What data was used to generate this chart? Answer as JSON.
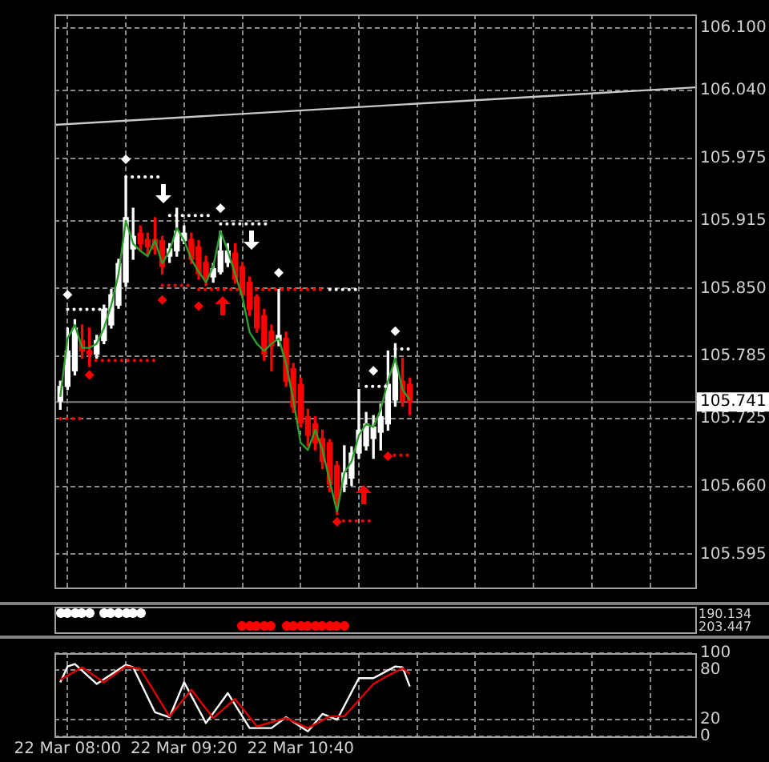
{
  "chart_data": [
    {
      "type": "candlestick",
      "tick_labels": "y",
      "grid": true,
      "xlim": [
        "--03-22T07:51",
        "--03-22T15:11"
      ],
      "xticks": [
        {
          "value": "--03-22T08:00",
          "label": null
        },
        {
          "value": "--03-22T08:40",
          "label": null
        },
        {
          "value": "--03-22T09:20",
          "label": null
        },
        {
          "value": "--03-22T10:00",
          "label": null
        },
        {
          "value": "--03-22T10:40",
          "label": null
        },
        {
          "value": "--03-22T11:20",
          "label": null
        },
        {
          "value": "--03-22T12:00",
          "label": null
        },
        {
          "value": "--03-22T12:40",
          "label": null
        },
        {
          "value": "--03-22T13:20",
          "label": null
        },
        {
          "value": "--03-22T14:00",
          "label": null
        },
        {
          "value": "--03-22T14:40",
          "label": null
        }
      ],
      "ylim": [
        105.563,
        106.113
      ],
      "yticks": [
        {
          "value": 105.595,
          "label": "105.595"
        },
        {
          "value": 105.66,
          "label": "105.660"
        },
        {
          "value": 105.725,
          "label": "105.725"
        },
        {
          "value": 105.785,
          "label": "105.785"
        },
        {
          "value": 105.85,
          "label": "105.850"
        },
        {
          "value": 105.915,
          "label": "105.915"
        },
        {
          "value": 105.975,
          "label": "105.975"
        },
        {
          "value": 106.04,
          "label": "106.040"
        },
        {
          "value": 106.1,
          "label": "106.100"
        }
      ],
      "x": [
        "--03-22T07:55",
        "--03-22T08:00",
        "--03-22T08:05",
        "--03-22T08:10",
        "--03-22T08:15",
        "--03-22T08:20",
        "--03-22T08:25",
        "--03-22T08:30",
        "--03-22T08:35",
        "--03-22T08:40",
        "--03-22T08:45",
        "--03-22T08:50",
        "--03-22T08:55",
        "--03-22T09:00",
        "--03-22T09:05",
        "--03-22T09:10",
        "--03-22T09:15",
        "--03-22T09:20",
        "--03-22T09:25",
        "--03-22T09:30",
        "--03-22T09:35",
        "--03-22T09:40",
        "--03-22T09:45",
        "--03-22T09:50",
        "--03-22T09:55",
        "--03-22T10:00",
        "--03-22T10:05",
        "--03-22T10:10",
        "--03-22T10:15",
        "--03-22T10:20",
        "--03-22T10:25",
        "--03-22T10:30",
        "--03-22T10:35",
        "--03-22T10:40",
        "--03-22T10:45",
        "--03-22T10:50",
        "--03-22T10:55",
        "--03-22T11:00",
        "--03-22T11:05",
        "--03-22T11:10",
        "--03-22T11:15",
        "--03-22T11:20",
        "--03-22T11:25",
        "--03-22T11:30",
        "--03-22T11:35",
        "--03-22T11:40",
        "--03-22T11:45",
        "--03-22T11:50",
        "--03-22T11:55"
      ],
      "ohlc": [
        [
          105.742,
          105.761,
          105.734,
          105.756
        ],
        [
          105.756,
          105.812,
          105.753,
          105.79
        ],
        [
          105.771,
          105.82,
          105.767,
          105.812
        ],
        [
          105.8,
          105.815,
          105.783,
          105.79
        ],
        [
          105.79,
          105.812,
          105.775,
          105.787
        ],
        [
          105.787,
          105.805,
          105.783,
          105.8
        ],
        [
          105.8,
          105.834,
          105.797,
          105.83
        ],
        [
          105.815,
          105.849,
          105.812,
          105.844
        ],
        [
          105.834,
          105.878,
          105.831,
          105.874
        ],
        [
          105.856,
          105.956,
          105.852,
          105.918
        ],
        [
          105.888,
          105.927,
          105.878,
          105.9
        ],
        [
          105.903,
          105.91,
          105.886,
          105.893
        ],
        [
          105.897,
          105.903,
          105.883,
          105.89
        ],
        [
          105.897,
          105.918,
          105.883,
          105.888
        ],
        [
          105.896,
          105.9,
          105.864,
          105.871
        ],
        [
          105.881,
          105.893,
          105.875,
          105.888
        ],
        [
          105.886,
          105.927,
          105.881,
          105.905
        ],
        [
          105.896,
          105.91,
          105.893,
          105.903
        ],
        [
          105.897,
          105.903,
          105.874,
          105.878
        ],
        [
          105.89,
          105.896,
          105.859,
          105.864
        ],
        [
          105.875,
          105.881,
          105.853,
          105.859
        ],
        [
          105.861,
          105.874,
          105.856,
          105.869
        ],
        [
          105.866,
          105.905,
          105.864,
          105.886
        ],
        [
          105.875,
          105.893,
          105.871,
          105.886
        ],
        [
          105.884,
          105.893,
          105.855,
          105.859
        ],
        [
          105.871,
          105.875,
          105.842,
          105.844
        ],
        [
          105.856,
          105.861,
          105.824,
          105.83
        ],
        [
          105.842,
          105.844,
          105.808,
          105.812
        ],
        [
          105.824,
          105.83,
          105.781,
          105.787
        ],
        [
          105.809,
          105.815,
          105.771,
          105.795
        ],
        [
          105.8,
          105.849,
          105.795,
          105.805
        ],
        [
          105.802,
          105.808,
          105.756,
          105.761
        ],
        [
          105.773,
          105.778,
          105.731,
          105.736
        ],
        [
          105.758,
          105.764,
          105.717,
          105.721
        ],
        [
          105.727,
          105.734,
          105.699,
          105.709
        ],
        [
          105.72,
          105.727,
          105.695,
          105.702
        ],
        [
          105.706,
          105.714,
          105.677,
          105.684
        ],
        [
          105.702,
          105.705,
          105.655,
          105.662
        ],
        [
          105.68,
          105.684,
          105.633,
          105.648
        ],
        [
          105.662,
          105.699,
          105.655,
          105.673
        ],
        [
          105.668,
          105.698,
          105.661,
          105.692
        ],
        [
          105.692,
          105.753,
          105.687,
          105.714
        ],
        [
          105.699,
          105.731,
          105.695,
          105.72
        ],
        [
          105.706,
          105.728,
          105.687,
          105.717
        ],
        [
          105.712,
          105.739,
          105.695,
          105.727
        ],
        [
          105.72,
          105.79,
          105.714,
          105.758
        ],
        [
          105.743,
          105.797,
          105.737,
          105.775
        ],
        [
          105.761,
          105.783,
          105.737,
          105.742
        ],
        [
          105.758,
          105.764,
          105.729,
          105.741
        ]
      ],
      "colors": [
        "#ffffff",
        "#ffffff",
        "#ffffff",
        "#ff0000",
        "#ff0000",
        "#ffffff",
        "#ffffff",
        "#ffffff",
        "#ffffff",
        "#ffffff",
        "#ffffff",
        "#ff0000",
        "#ff0000",
        "#ff0000",
        "#ff0000",
        "#ffffff",
        "#ffffff",
        "#ffffff",
        "#ff0000",
        "#ff0000",
        "#ff0000",
        "#ffffff",
        "#ffffff",
        "#ffffff",
        "#ff0000",
        "#ff0000",
        "#ff0000",
        "#ff0000",
        "#ff0000",
        "#ff0000",
        "#ffffff",
        "#ff0000",
        "#ff0000",
        "#ff0000",
        "#ff0000",
        "#ff0000",
        "#ff0000",
        "#ff0000",
        "#ff0000",
        "#ffffff",
        "#ffffff",
        "#ffffff",
        "#ffffff",
        "#ffffff",
        "#ffffff",
        "#ffffff",
        "#ffffff",
        "#ff0000",
        "#ff0000"
      ],
      "ref_lines": [
        {
          "axis": "y",
          "value": 105.741,
          "label": "105.741",
          "color": "#808080"
        }
      ],
      "series": [
        {
          "type": "line",
          "color": "#c8c8c8",
          "line_style": "solid",
          "x": [
            "--03-22T07:51",
            "--03-22T15:11"
          ],
          "values": [
            106.007,
            106.043
          ]
        },
        {
          "type": "line",
          "color": "#2e9e2e",
          "line_style": "solid",
          "x": [
            "--03-22T07:55",
            "--03-22T08:00",
            "--03-22T08:05",
            "--03-22T08:10",
            "--03-22T08:15",
            "--03-22T08:20",
            "--03-22T08:25",
            "--03-22T08:30",
            "--03-22T08:35",
            "--03-22T08:40",
            "--03-22T08:45",
            "--03-22T08:50",
            "--03-22T08:55",
            "--03-22T09:00",
            "--03-22T09:05",
            "--03-22T09:10",
            "--03-22T09:15",
            "--03-22T09:20",
            "--03-22T09:25",
            "--03-22T09:30",
            "--03-22T09:35",
            "--03-22T09:40",
            "--03-22T09:45",
            "--03-22T09:50",
            "--03-22T09:55",
            "--03-22T10:00",
            "--03-22T10:05",
            "--03-22T10:10",
            "--03-22T10:15",
            "--03-22T10:20",
            "--03-22T10:25",
            "--03-22T10:30",
            "--03-22T10:35",
            "--03-22T10:40",
            "--03-22T10:45",
            "--03-22T10:50",
            "--03-22T10:55",
            "--03-22T11:00",
            "--03-22T11:05",
            "--03-22T11:10",
            "--03-22T11:15",
            "--03-22T11:20",
            "--03-22T11:25",
            "--03-22T11:30",
            "--03-22T11:35",
            "--03-22T11:40",
            "--03-22T11:45",
            "--03-22T11:50",
            "--03-22T11:55"
          ],
          "values": [
            105.746,
            105.802,
            105.815,
            105.793,
            105.793,
            105.797,
            105.812,
            105.834,
            105.864,
            105.915,
            105.893,
            105.886,
            105.881,
            105.896,
            105.874,
            105.886,
            105.908,
            105.896,
            105.878,
            105.866,
            105.856,
            105.871,
            105.905,
            105.886,
            105.864,
            105.842,
            105.808,
            105.797,
            105.79,
            105.797,
            105.802,
            105.778,
            105.743,
            105.702,
            105.695,
            105.714,
            105.695,
            105.665,
            105.636,
            105.673,
            105.684,
            105.709,
            105.72,
            105.717,
            105.734,
            105.761,
            105.783,
            105.753,
            105.743
          ]
        },
        {
          "type": "line",
          "color": "#ffffff",
          "line_style": "dotted",
          "x": [
            "--03-22T08:00",
            "--03-22T08:35",
            "--03-22T08:37",
            "--03-22T08:40",
            "--03-22T09:05",
            "--03-22T09:07",
            "--03-22T09:10",
            "--03-22T09:40",
            "--03-22T09:42",
            "--03-22T09:45",
            "--03-22T10:20",
            "--03-22T10:36",
            "--03-22T11:00",
            "--03-22T11:20",
            "--03-22T11:22",
            "--03-22T11:25",
            "--03-22T11:40",
            "--03-22T11:42",
            "--03-22T11:45",
            "--03-22T11:55"
          ],
          "values": [
            105.83,
            105.83,
            null,
            105.957,
            105.957,
            null,
            105.92,
            105.92,
            null,
            105.912,
            105.912,
            null,
            105.849,
            105.849,
            null,
            105.756,
            105.756,
            null,
            105.792,
            105.792
          ]
        },
        {
          "type": "line",
          "color": "#ff0000",
          "line_style": "dotted",
          "x": [
            "--03-22T07:55",
            "--03-22T08:10",
            "--03-22T08:12",
            "--03-22T08:15",
            "--03-22T09:00",
            "--03-22T09:02",
            "--03-22T09:05",
            "--03-22T09:25",
            "--03-22T09:27",
            "--03-22T09:30",
            "--03-22T10:55",
            "--03-22T11:00",
            "--03-22T11:05",
            "--03-22T11:30",
            "--03-22T11:35",
            "--03-22T11:40",
            "--03-22T11:55"
          ],
          "values": [
            105.725,
            105.725,
            null,
            105.781,
            105.781,
            null,
            105.853,
            105.853,
            null,
            105.849,
            105.849,
            null,
            105.627,
            105.627,
            null,
            105.69,
            105.69
          ]
        },
        {
          "type": "scatter",
          "color": "#ffffff",
          "marker": "diamond",
          "x": [
            "--03-22T08:00",
            "--03-22T08:40",
            "--03-22T09:45",
            "--03-22T10:25",
            "--03-22T11:30",
            "--03-22T11:45"
          ],
          "values": [
            105.844,
            105.974,
            105.927,
            105.865,
            105.771,
            105.809
          ]
        },
        {
          "type": "scatter",
          "color": "#ff0000",
          "marker": "diamond",
          "x": [
            "--03-22T08:15",
            "--03-22T09:05",
            "--03-22T09:30",
            "--03-22T11:05",
            "--03-22T11:40"
          ],
          "values": [
            105.767,
            105.839,
            105.833,
            105.626,
            105.689
          ]
        }
      ]
    },
    {
      "type": "other",
      "annotations": [
        "190.134",
        "203.447"
      ]
    },
    {
      "type": "line",
      "grid": true,
      "line_style": "solid",
      "xlim": [
        "--03-22T07:51",
        "--03-22T15:11"
      ],
      "xticks": [
        {
          "value": "--03-22T08:00",
          "label": "22 Mar 08:00"
        },
        {
          "value": "--03-22T08:40",
          "label": null
        },
        {
          "value": "--03-22T09:20",
          "label": "22 Mar 09:20"
        },
        {
          "value": "--03-22T10:00",
          "label": null
        },
        {
          "value": "--03-22T10:40",
          "label": "22 Mar 10:40"
        },
        {
          "value": "--03-22T11:20",
          "label": null
        },
        {
          "value": "--03-22T12:00",
          "label": null
        },
        {
          "value": "--03-22T12:40",
          "label": null
        },
        {
          "value": "--03-22T13:20",
          "label": null
        },
        {
          "value": "--03-22T14:00",
          "label": null
        },
        {
          "value": "--03-22T14:40",
          "label": null
        }
      ],
      "ylim": [
        0,
        100
      ],
      "yticks": [
        0,
        20,
        80,
        100
      ],
      "series": [
        {
          "color": "#ffffff",
          "x": [
            "--03-22T07:55",
            "--03-22T08:00",
            "--03-22T08:05",
            "--03-22T08:20",
            "--03-22T08:40",
            "--03-22T08:45",
            "--03-22T09:00",
            "--03-22T09:10",
            "--03-22T09:20",
            "--03-22T09:35",
            "--03-22T09:50",
            "--03-22T10:05",
            "--03-22T10:20",
            "--03-22T10:30",
            "--03-22T10:45",
            "--03-22T10:55",
            "--03-22T11:05",
            "--03-22T11:20",
            "--03-22T11:30",
            "--03-22T11:45",
            "--03-22T11:50",
            "--03-22T11:55"
          ],
          "values": [
            65,
            84,
            87,
            63,
            86,
            83,
            29,
            23,
            65,
            16,
            52,
            10,
            10,
            23,
            6,
            27,
            20,
            70,
            70,
            84,
            83,
            60
          ]
        },
        {
          "color": "#e00000",
          "x": [
            "--03-22T07:55",
            "--03-22T08:10",
            "--03-22T08:25",
            "--03-22T08:40",
            "--03-22T08:50",
            "--03-22T09:10",
            "--03-22T09:25",
            "--03-22T09:40",
            "--03-22T09:55",
            "--03-22T10:10",
            "--03-22T10:30",
            "--03-22T10:45",
            "--03-22T11:00",
            "--03-22T11:10",
            "--03-22T11:30",
            "--03-22T11:40",
            "--03-22T11:50",
            "--03-22T11:55"
          ],
          "values": [
            68,
            83,
            65,
            84,
            81,
            24,
            56,
            22,
            45,
            12,
            22,
            10,
            24,
            24,
            63,
            73,
            82,
            75
          ]
        }
      ]
    }
  ]
}
